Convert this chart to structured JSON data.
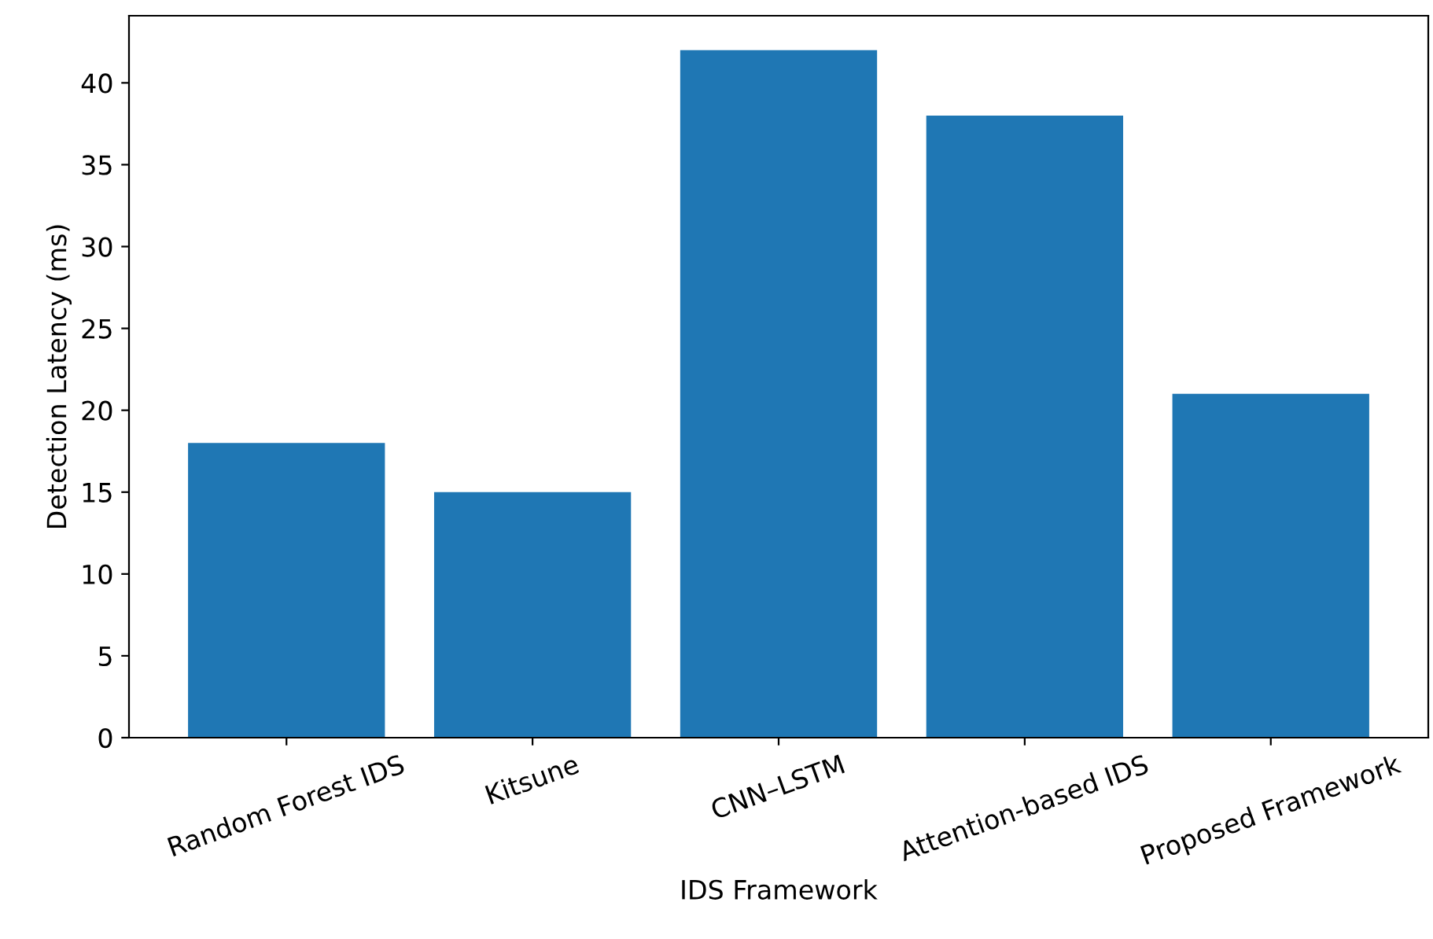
{
  "chart_data": {
    "type": "bar",
    "xlabel": "IDS Framework",
    "ylabel": "Detection Latency (ms)",
    "categories": [
      "Random Forest IDS",
      "Kitsune",
      "CNN–LSTM",
      "Attention-based IDS",
      "Proposed Framework"
    ],
    "values": [
      18,
      15,
      42,
      38,
      21
    ],
    "color": "#1f77b4",
    "ylim": [
      0,
      44.1
    ],
    "yticks": [
      0,
      5,
      10,
      15,
      20,
      25,
      30,
      35,
      40
    ],
    "grid": false,
    "legend": false
  }
}
